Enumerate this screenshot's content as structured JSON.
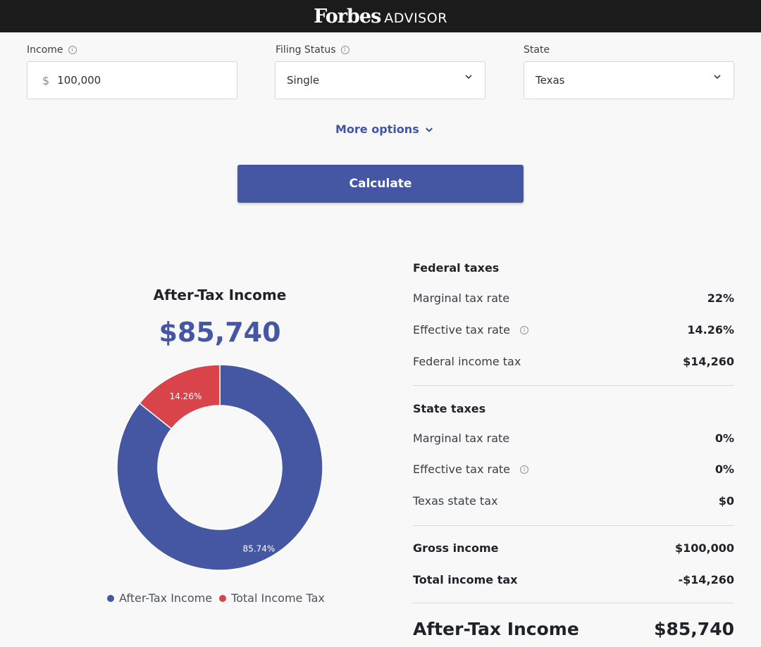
{
  "header": {
    "logo_main": "Forbes",
    "logo_sub": "ADVISOR"
  },
  "form": {
    "income": {
      "label": "Income",
      "currency": "$",
      "value": "100,000"
    },
    "filing_status": {
      "label": "Filing Status",
      "value": "Single"
    },
    "state": {
      "label": "State",
      "value": "Texas"
    },
    "more_options": "More options",
    "calculate": "Calculate"
  },
  "summary": {
    "title": "After-Tax Income",
    "amount": "$85,740"
  },
  "chart_data": {
    "type": "pie",
    "categories": [
      "After-Tax Income",
      "Total Income Tax"
    ],
    "values": [
      85.74,
      14.26
    ],
    "labels": [
      "85.74%",
      "14.26%"
    ],
    "colors": [
      "#4556a3",
      "#d9434a"
    ],
    "legend_position": "bottom"
  },
  "federal": {
    "heading": "Federal taxes",
    "marginal_label": "Marginal tax rate",
    "marginal_value": "22%",
    "effective_label": "Effective tax rate",
    "effective_value": "14.26%",
    "income_tax_label": "Federal income tax",
    "income_tax_value": "$14,260"
  },
  "state_taxes": {
    "heading": "State taxes",
    "marginal_label": "Marginal tax rate",
    "marginal_value": "0%",
    "effective_label": "Effective tax rate",
    "effective_value": "0%",
    "state_tax_label": "Texas state tax",
    "state_tax_value": "$0"
  },
  "totals": {
    "gross_label": "Gross income",
    "gross_value": "$100,000",
    "total_tax_label": "Total income tax",
    "total_tax_value": "-$14,260",
    "after_tax_label": "After-Tax Income",
    "after_tax_value": "$85,740"
  }
}
